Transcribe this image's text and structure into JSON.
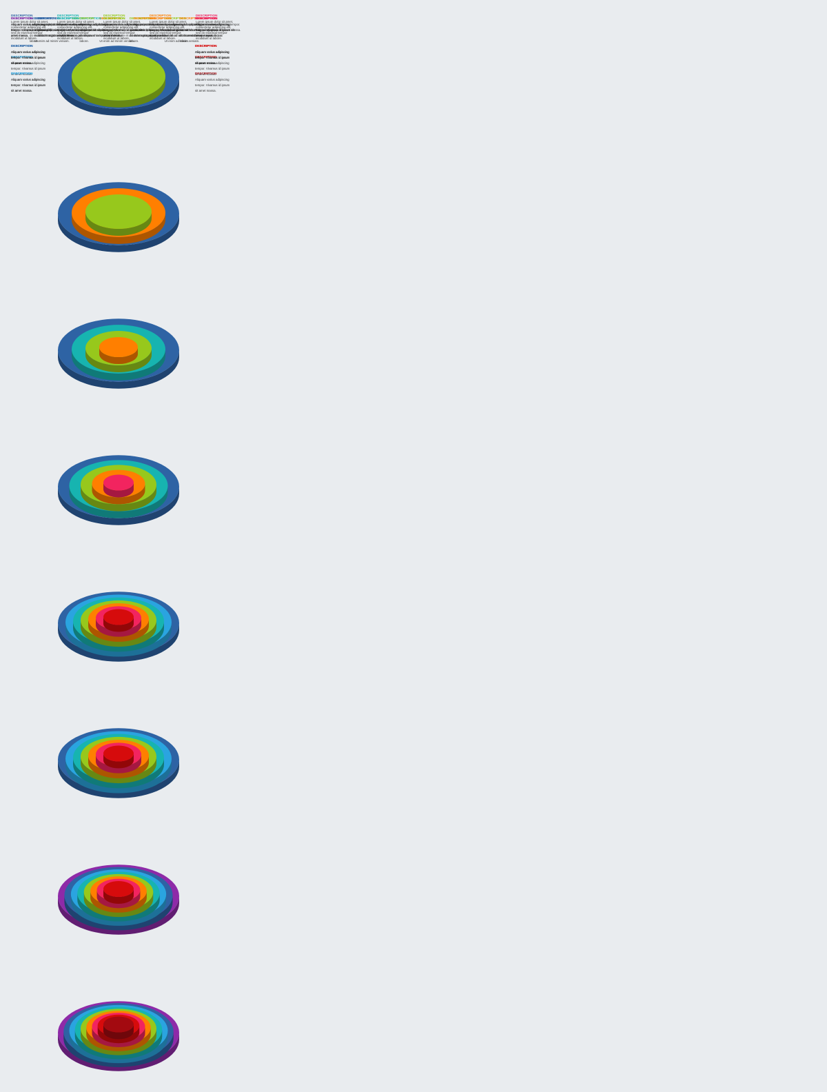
{
  "slides": [
    {
      "top": [
        {
          "label": "DESCRIPTION",
          "color": "#2e63a4",
          "text": "Lorem ipsum dolor sit amet, consectetur adipiscing elit, sed do eiusmod tempor incididunt ut labore et dolore magna aliqua. Ut enim ad minim veniam."
        },
        {
          "label": "DESCRIPTION",
          "color": "#97c81c",
          "text": "Lorem ipsum dolor sit amet, consectetur adipiscing elit, sed do eiusmod tempor incididunt ut labore et dolore magna aliqua. Ut enim ad minim veniam."
        }
      ],
      "rings": [
        "#2e63a4",
        "#97c81c"
      ]
    },
    {
      "top": [
        {
          "label": "DESCRIPTION",
          "color": "#2e63a4",
          "text": "Lorem ipsum dolor sit amet, consectetur adipiscing elit, sed do eiusmod tempor incididunt ut labore et dolore magna aliqua. Ut enim ad minim veniam."
        },
        {
          "label": "DESCRIPTION",
          "color": "#ff7f00",
          "text": "Lorem ipsum dolor sit amet, consectetur adipiscing elit, sed do eiusmod tempor incididunt ut labore et dolore magna aliqua. Ut enim ad minim veniam."
        },
        {
          "label": "DESCRIPTION",
          "color": "#97c81c",
          "text": "Lorem ipsum dolor sit amet, consectetur adipiscing elit, sed do eiusmod tempor incididunt ut labore et dolore magna aliqua. Ut enim ad minim veniam."
        }
      ],
      "rings": [
        "#2e63a4",
        "#ff7f00",
        "#97c81c"
      ]
    },
    {
      "top": [
        {
          "label": "DESCRIPTION",
          "color": "#2e63a4",
          "text": "Lorem ipsum dolor sit amet, consectetur adipiscing elit, sed do eiusmod tempor incididunt ut labore."
        },
        {
          "label": "DESCRIPTION",
          "color": "#17b4b0",
          "text": "Lorem ipsum dolor sit amet, consectetur adipiscing elit, sed do eiusmod tempor incididunt ut labore."
        },
        {
          "label": "DESCRIPTION",
          "color": "#97c81c",
          "text": "Lorem ipsum dolor sit amet, consectetur adipiscing elit, sed do eiusmod tempor incididunt ut labore."
        },
        {
          "label": "DESCRIPTION",
          "color": "#ff7f00",
          "text": "Lorem ipsum dolor sit amet, consectetur adipiscing elit, sed do eiusmod tempor incididunt ut labore."
        }
      ],
      "rings": [
        "#2e63a4",
        "#17b4b0",
        "#97c81c",
        "#ff7f00"
      ]
    },
    {
      "top": [
        {
          "label": "DESCRIPTION",
          "color": "#2e63a4",
          "text": "Lorem ipsum dolor sit amet, consectetur adipiscing elit, sed do eiusmod tempor incididunt ut labore."
        },
        {
          "label": "DESCRIPTION",
          "color": "#17b4b0",
          "text": "Lorem ipsum dolor sit amet, consectetur adipiscing elit, sed do eiusmod tempor incididunt ut labore."
        },
        {
          "label": "DESCRIPTION",
          "color": "#97c81c",
          "text": "Lorem ipsum dolor sit amet, consectetur adipiscing elit, sed do eiusmod tempor incididunt ut labore."
        },
        {
          "label": "DESCRIPTION",
          "color": "#ff7f00",
          "text": "Lorem ipsum dolor sit amet, consectetur adipiscing elit, sed do eiusmod tempor incididunt ut labore."
        },
        {
          "label": "DESCRIPTION",
          "color": "#f2245f",
          "text": "Lorem ipsum dolor sit amet, consectetur adipiscing elit, sed do eiusmod tempor incididunt ut labore."
        }
      ],
      "rings": [
        "#2e63a4",
        "#17b4b0",
        "#97c81c",
        "#ff7f00",
        "#f2245f"
      ]
    },
    {
      "top": [
        {
          "label": "DESCRIPTION",
          "color": "#2e63a4",
          "text": "Aliquam varius adipiscing tempor. Vivamus id ipsum sit amet massa."
        },
        {
          "label": "DESCRIPTION",
          "color": "#97c81c",
          "text": "Aliquam varius adipiscing tempor. Vivamus id ipsum sit amet massa."
        },
        {
          "label": "DESCRIPTION",
          "color": "#ff7f00",
          "text": "Aliquam varius adipiscing tempor. Vivamus id ipsum sit amet massa."
        },
        {
          "label": "DESCRIPTION",
          "color": "#f2245f",
          "text": "Aliquam varius adipiscing tempor. Vivamus id ipsum sit amet massa."
        }
      ],
      "left": [
        {
          "label": "DESCRIPTION",
          "color": "#2aa4e0",
          "text": "Aliquam varius adipiscing tempor. Vivamus id ipsum sit amet massa."
        }
      ],
      "right": [
        {
          "label": "DESCRIPTION",
          "color": "#d60b0c",
          "text": "Aliquam varius adipiscing tempor. Vivamus id ipsum sit amet massa."
        }
      ],
      "rings": [
        "#2e63a4",
        "#2aa4e0",
        "#17b4b0",
        "#97c81c",
        "#ff7f00",
        "#f2245f",
        "#d60b0c"
      ]
    },
    {
      "top": [
        {
          "label": "DESCRIPTION",
          "color": "#2e63a4",
          "text": "Aliquam varius adipiscing tempor. Vivamus id ipsum sit amet massa."
        },
        {
          "label": "DESCRIPTION",
          "color": "#17b4b0",
          "text": "Aliquam varius adipiscing tempor. Vivamus id ipsum sit amet massa."
        },
        {
          "label": "DESCRIPTION",
          "color": "#97c81c",
          "text": "Aliquam varius adipiscing tempor. Vivamus id ipsum sit amet massa."
        },
        {
          "label": "DESCRIPTION",
          "color": "#ff7f00",
          "text": "Aliquam varius adipiscing tempor. Vivamus id ipsum sit amet massa."
        },
        {
          "label": "DESCRIPTION",
          "color": "#f2245f",
          "text": "Aliquam varius adipiscing tempor. Vivamus id ipsum sit amet massa."
        }
      ],
      "left": [
        {
          "label": "DESCRIPTION",
          "color": "#2aa4e0",
          "text": "Aliquam varius adipiscing tempor. Vivamus id ipsum sit amet massa."
        }
      ],
      "right": [
        {
          "label": "DESCRIPTION",
          "color": "#d60b0c",
          "text": "Aliquam varius adipiscing tempor. Vivamus id ipsum sit amet massa."
        }
      ],
      "rings": [
        "#2e63a4",
        "#2aa4e0",
        "#17b4b0",
        "#97c81c",
        "#ff7f00",
        "#f2245f",
        "#d60b0c"
      ]
    },
    {
      "top": [
        {
          "label": "DESCRIPTION",
          "color": "#8e2aa8",
          "text": "Aliquam varius adipiscing tempor. Vivamus id ipsum sit amet massa."
        },
        {
          "label": "DESCRIPTION",
          "color": "#17b4b0",
          "text": "Aliquam varius adipiscing tempor. Vivamus id ipsum sit amet massa."
        },
        {
          "label": "DESCRIPTION",
          "color": "#97c81c",
          "text": "Aliquam varius adipiscing tempor. Vivamus id ipsum sit amet massa."
        },
        {
          "label": "DESCRIPTION",
          "color": "#ff7f00",
          "text": "Aliquam varius adipiscing tempor. Vivamus id ipsum sit amet massa."
        },
        {
          "label": "DESCRIPTION",
          "color": "#d60b0c",
          "text": "Aliquam varius adipiscing tempor. Vivamus id ipsum sit amet massa."
        }
      ],
      "left": [
        {
          "label": "DESCRIPTION",
          "color": "#2e63a4",
          "text": "Aliquam varius adipiscing tempor. Vivamus id ipsum sit amet massa."
        },
        {
          "label": "DESCRIPTION",
          "color": "#2aa4e0",
          "text": "Aliquam varius adipiscing tempor. Vivamus id ipsum sit amet massa."
        }
      ],
      "right": [
        {
          "label": "DESCRIPTION",
          "color": "#d60b0c",
          "text": "Aliquam varius adipiscing tempor. Vivamus id ipsum sit amet massa."
        }
      ],
      "rings": [
        "#8e2aa8",
        "#2e63a4",
        "#2aa4e0",
        "#17b4b0",
        "#97c81c",
        "#ff7f00",
        "#f2245f",
        "#d60b0c"
      ]
    },
    {
      "top": [
        {
          "label": "DESCRIPTION",
          "color": "#8e2aa8",
          "text": "Aliquam varius adipiscing tempor. Vivamus id ipsum sit amet massa."
        },
        {
          "label": "DESCRIPTION",
          "color": "#17b4b0",
          "text": "Aliquam varius adipiscing tempor. Vivamus id ipsum sit amet massa."
        },
        {
          "label": "DESCRIPTION",
          "color": "#97c81c",
          "text": "Aliquam varius adipiscing tempor. Vivamus id ipsum sit amet massa."
        },
        {
          "label": "DESCRIPTION",
          "color": "#ff7f00",
          "text": "Aliquam varius adipiscing tempor. Vivamus id ipsum sit amet massa."
        },
        {
          "label": "DESCRIPTION",
          "color": "#f2245f",
          "text": "Aliquam varius adipiscing tempor. Vivamus id ipsum sit amet massa."
        }
      ],
      "left": [
        {
          "label": "DESCRIPTION",
          "color": "#2e63a4",
          "text": "Aliquam varius adipiscing tempor. Vivamus id ipsum sit amet massa."
        },
        {
          "label": "DESCRIPTION",
          "color": "#2aa4e0",
          "text": "Aliquam varius adipiscing tempor. Vivamus id ipsum sit amet massa."
        }
      ],
      "right": [
        {
          "label": "DESCRIPTION",
          "color": "#d60b0c",
          "text": "Aliquam varius adipiscing tempor. Vivamus id ipsum sit amet massa."
        },
        {
          "label": "DESCRIPTION",
          "color": "#a30a10",
          "text": "Aliquam varius adipiscing tempor. Vivamus id ipsum sit amet massa."
        }
      ],
      "rings": [
        "#8e2aa8",
        "#2e63a4",
        "#2aa4e0",
        "#17b4b0",
        "#97c81c",
        "#ff7f00",
        "#f2245f",
        "#d60b0c",
        "#a30a10"
      ]
    }
  ]
}
